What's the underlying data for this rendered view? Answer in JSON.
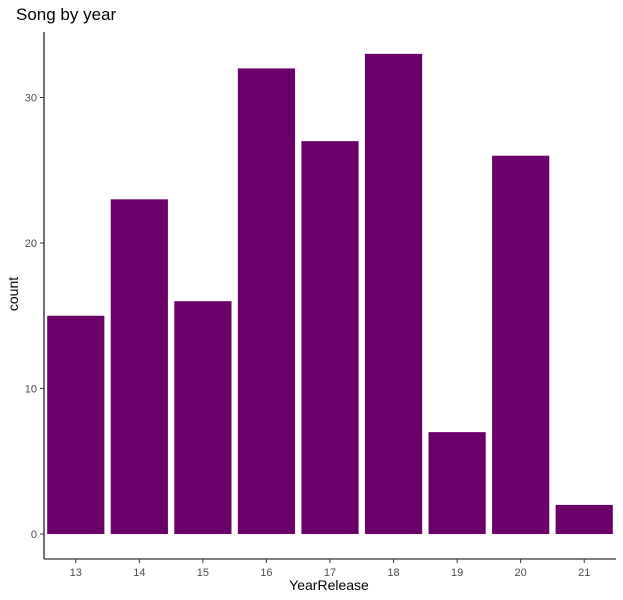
{
  "chart_data": {
    "type": "bar",
    "title": "Song by year",
    "xlabel": "YearRelease",
    "ylabel": "count",
    "categories": [
      "13",
      "14",
      "15",
      "16",
      "17",
      "18",
      "19",
      "20",
      "21"
    ],
    "values": [
      15,
      23,
      16,
      32,
      27,
      33,
      7,
      26,
      2
    ],
    "yticks": [
      0,
      10,
      20,
      30
    ],
    "ylim": [
      0,
      34.65
    ],
    "grid": false,
    "legend": "none",
    "bar_color": "#6b006b"
  }
}
